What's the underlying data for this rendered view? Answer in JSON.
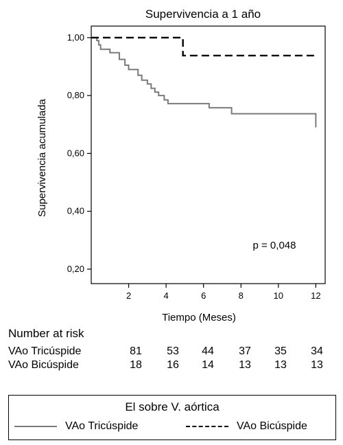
{
  "chart_data": {
    "type": "line",
    "title": "Supervivencia a 1 año",
    "xlabel": "Tiempo (Meses)",
    "ylabel": "Supervivencia acumulada",
    "xlim": [
      0,
      12.5
    ],
    "ylim": [
      0.15,
      1.04
    ],
    "xticks": [
      2,
      4,
      6,
      8,
      10,
      12
    ],
    "yticks": [
      1.0,
      0.8,
      0.6,
      0.4,
      0.2
    ],
    "xtick_labels": [
      "2",
      "4",
      "6",
      "8",
      "10",
      "12"
    ],
    "ytick_labels": [
      "1,00",
      "0,80",
      "0,60",
      "0,40",
      "0,20"
    ],
    "grid": false,
    "annotation": "p = 0,048",
    "series": [
      {
        "name": "VAo Tricúspide",
        "color": "#7a7a7a",
        "style": "solid",
        "step_points": [
          [
            0,
            1.0
          ],
          [
            0.3,
            0.99
          ],
          [
            0.4,
            0.975
          ],
          [
            0.5,
            0.96
          ],
          [
            1.0,
            0.948
          ],
          [
            1.5,
            0.925
          ],
          [
            1.8,
            0.905
          ],
          [
            2.0,
            0.89
          ],
          [
            2.5,
            0.87
          ],
          [
            2.7,
            0.853
          ],
          [
            3.0,
            0.84
          ],
          [
            3.2,
            0.825
          ],
          [
            3.4,
            0.812
          ],
          [
            3.6,
            0.8
          ],
          [
            3.9,
            0.785
          ],
          [
            4.1,
            0.772
          ],
          [
            6.3,
            0.758
          ],
          [
            7.5,
            0.737
          ],
          [
            12.0,
            0.737
          ],
          [
            12.0,
            0.69
          ]
        ]
      },
      {
        "name": "VAo Bicúspide",
        "color": "#000000",
        "style": "dashed",
        "step_points": [
          [
            0,
            1.0
          ],
          [
            4.9,
            1.0
          ],
          [
            4.9,
            0.938
          ],
          [
            12.0,
            0.938
          ]
        ]
      }
    ]
  },
  "risk_table": {
    "title": "Number at risk",
    "rows": [
      {
        "label": "VAo Tricúspide",
        "values": [
          "81",
          "53",
          "44",
          "37",
          "35",
          "34"
        ]
      },
      {
        "label": "VAo Bicúspide",
        "values": [
          "18",
          "16",
          "14",
          "13",
          "13",
          "13"
        ]
      }
    ]
  },
  "legend": {
    "title": "El sobre V. aórtica",
    "items": [
      "VAo Tricúspide",
      "VAo Bicúspide"
    ]
  }
}
